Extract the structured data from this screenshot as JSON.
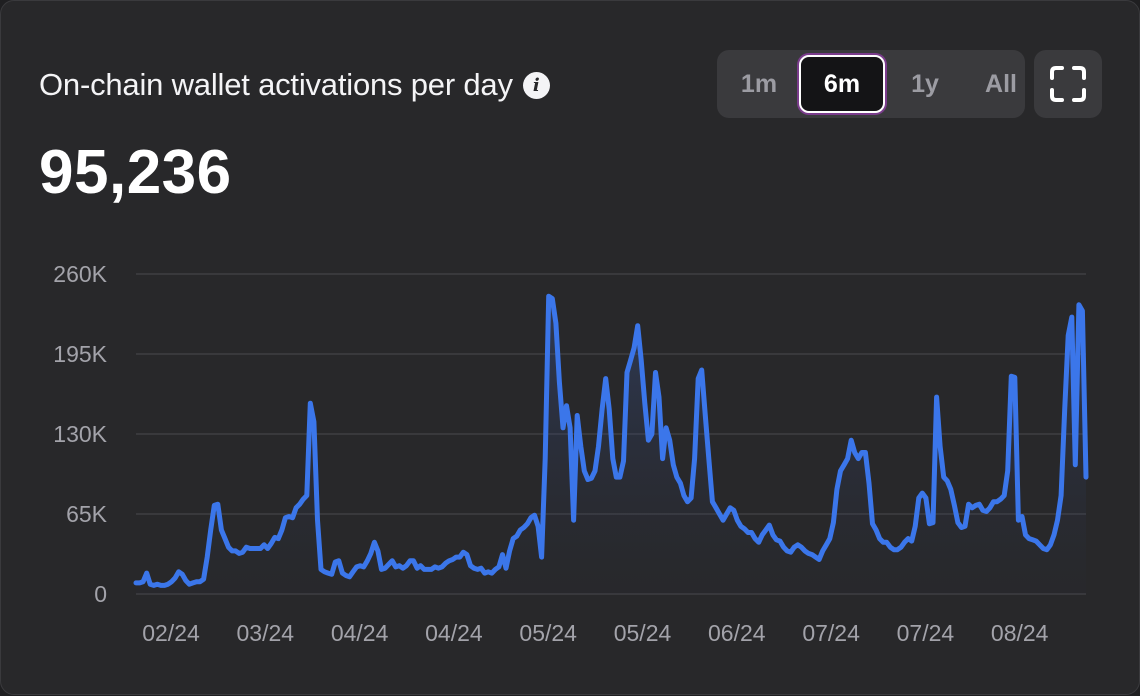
{
  "header": {
    "title": "On-chain wallet activations per day",
    "info_icon": "info-icon",
    "value": "95,236"
  },
  "range_selector": {
    "options": [
      "1m",
      "6m",
      "1y",
      "All"
    ],
    "selected": "6m"
  },
  "expand_icon": "fullscreen-icon",
  "colors": {
    "background": "#28282a",
    "line": "#3b76ea",
    "grid": "#3f3f43",
    "axis_text": "#a3a3aa"
  },
  "chart_data": {
    "type": "area",
    "title": "On-chain wallet activations per day",
    "xlabel": "",
    "ylabel": "",
    "ylim": [
      0,
      260000
    ],
    "yticks": [
      0,
      65000,
      130000,
      195000,
      260000
    ],
    "ytick_labels": [
      "0",
      "65K",
      "130K",
      "195K",
      "260K"
    ],
    "xtick_labels": [
      "02/24",
      "03/24",
      "04/24",
      "04/24",
      "05/24",
      "05/24",
      "06/24",
      "07/24",
      "07/24",
      "08/24"
    ],
    "grid": true,
    "legend": "none",
    "series": [
      {
        "values": [
          9000,
          9000,
          10000,
          17000,
          8000,
          7000,
          8000,
          7000,
          7000,
          8000,
          10000,
          13000,
          18000,
          16000,
          11000,
          8000,
          9000,
          10000,
          10000,
          12000,
          30000,
          52000,
          72000,
          73000,
          52000,
          45000,
          38000,
          35000,
          35000,
          33000,
          34000,
          38000,
          37000,
          37000,
          37000,
          37000,
          40000,
          37000,
          41000,
          46000,
          45000,
          52000,
          62000,
          63000,
          62000,
          70000,
          73000,
          77000,
          80000,
          155000,
          140000,
          60000,
          20000,
          18000,
          17000,
          16000,
          26000,
          27000,
          17000,
          15000,
          14000,
          18000,
          22000,
          23000,
          22000,
          27000,
          33000,
          42000,
          35000,
          20000,
          21000,
          24000,
          27000,
          22000,
          23000,
          21000,
          23000,
          27000,
          27000,
          21000,
          23000,
          20000,
          20000,
          20000,
          22000,
          21000,
          22000,
          25000,
          27000,
          28000,
          30000,
          30000,
          34000,
          32000,
          23000,
          21000,
          20000,
          21000,
          17000,
          18000,
          17000,
          20000,
          22000,
          32000,
          21000,
          35000,
          45000,
          47000,
          52000,
          54000,
          57000,
          62000,
          64000,
          55000,
          30000,
          110000,
          242000,
          240000,
          220000,
          172000,
          135000,
          153000,
          135000,
          60000,
          145000,
          120000,
          100000,
          93000,
          94000,
          100000,
          120000,
          150000,
          175000,
          150000,
          110000,
          95000,
          95000,
          108000,
          180000,
          190000,
          200000,
          218000,
          190000,
          155000,
          125000,
          130000,
          180000,
          160000,
          110000,
          135000,
          125000,
          105000,
          95000,
          90000,
          80000,
          75000,
          78000,
          110000,
          175000,
          182000,
          145000,
          110000,
          75000,
          70000,
          65000,
          60000,
          65000,
          70000,
          68000,
          60000,
          55000,
          53000,
          50000,
          50000,
          45000,
          42000,
          48000,
          52000,
          56000,
          48000,
          44000,
          43000,
          38000,
          35000,
          34000,
          38000,
          40000,
          38000,
          35000,
          33000,
          32000,
          30000,
          28000,
          35000,
          40000,
          45000,
          58000,
          85000,
          100000,
          105000,
          110000,
          125000,
          115000,
          110000,
          115000,
          115000,
          90000,
          57000,
          52000,
          45000,
          42000,
          42000,
          38000,
          36000,
          36000,
          38000,
          42000,
          45000,
          43000,
          55000,
          78000,
          82000,
          78000,
          57000,
          58000,
          160000,
          120000,
          95000,
          92000,
          85000,
          72000,
          58000,
          54000,
          55000,
          73000,
          70000,
          72000,
          73000,
          68000,
          67000,
          70000,
          75000,
          75000,
          77000,
          80000,
          100000,
          177000,
          176000,
          60000,
          63000,
          48000,
          45000,
          44000,
          43000,
          40000,
          37000,
          36000,
          40000,
          48000,
          60000,
          80000,
          150000,
          210000,
          225000,
          105000,
          235000,
          230000,
          95000
        ]
      }
    ]
  }
}
